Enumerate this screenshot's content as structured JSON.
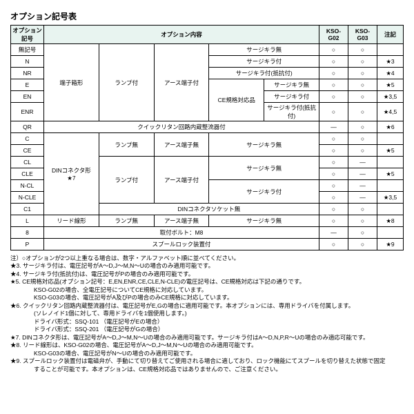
{
  "title": "オプション記号表",
  "headers": {
    "code": "オプション記号",
    "content": "オプション内容",
    "g02": "KSO-G02",
    "g03": "KSO-G03",
    "note": "注記"
  },
  "rows": [
    {
      "code": "無記号",
      "c1": "",
      "c2": "",
      "c3": "",
      "c4": "サージキラ無",
      "g02": "○",
      "g03": "○",
      "note": ""
    },
    {
      "code": "N",
      "c4": "サージキラ付",
      "g02": "○",
      "g03": "○",
      "note": "★3"
    },
    {
      "code": "NR",
      "c4": "サージキラ付(抵抗付)",
      "g02": "○",
      "g03": "○",
      "note": "★4"
    },
    {
      "code": "E",
      "c4g": "CE規格対応品",
      "c4": "サージキラ無",
      "g02": "○",
      "g03": "○",
      "note": "★5"
    },
    {
      "code": "EN",
      "c4": "サージキラ付",
      "g02": "○",
      "g03": "○",
      "note": "★3,5"
    },
    {
      "code": "ENR",
      "c4": "サージキラ付(抵抗付)",
      "g02": "○",
      "g03": "○",
      "note": "★4,5"
    },
    {
      "code": "QR",
      "qr": "クイックリタン回路内蔵整流器付",
      "g02": "―",
      "g03": "○",
      "note": "★6"
    },
    {
      "code": "C",
      "c4b": "サージキラ無",
      "g02": "○",
      "g03": "○",
      "note": ""
    },
    {
      "code": "CE",
      "c4": "CE規格対応品",
      "g02": "○",
      "g03": "○",
      "note": "★5"
    },
    {
      "code": "CL",
      "g02": "○",
      "g03": "―",
      "note": ""
    },
    {
      "code": "CLE",
      "c4": "CE規格対応品",
      "g02": "○",
      "g03": "―",
      "note": "★5"
    },
    {
      "code": "N-CL",
      "c4b": "サージキラ付",
      "g02": "○",
      "g03": "―",
      "note": ""
    },
    {
      "code": "N-CLE",
      "c4": "CE規格対応品",
      "g02": "○",
      "g03": "―",
      "note": "★3,5"
    },
    {
      "code": "C1",
      "din": "DINコネクタソケット無",
      "g02": "○",
      "g03": "○",
      "note": ""
    },
    {
      "code": "L",
      "c1": "リード線形",
      "c2": "ランプ無",
      "c3": "アース端子無",
      "c4": "サージキラ無",
      "g02": "○",
      "g03": "○",
      "note": "★8"
    },
    {
      "code": "8",
      "bolt": "取付ボルト：M8",
      "g02": "―",
      "g03": "○",
      "note": ""
    },
    {
      "code": "P",
      "spool": "スプールロック装置付",
      "g02": "○",
      "g03": "○",
      "note": "★9"
    }
  ],
  "groups": {
    "terminal": "端子箱形",
    "lamp_on": "ランプ付",
    "earth_on": "アース端子付",
    "din": "DINコネクタ形\n★7",
    "lamp_off": "ランプ無",
    "earth_off": "アース端子無"
  },
  "notes": {
    "intro": "注）○オプションが2つ以上重なる場合は、数字・アルファベット順に並べてください。",
    "n3": "★3. サージキラ付は、電圧記号がA～D,J～M,N～Uの場合のみ適用可能です。",
    "n4": "★4. サージキラ付(抵抗付)は、電圧記号がPの場合のみ適用可能です。",
    "n5": "★5. CE規格対応品(オプション記号：E,EN,ENR,CE,CLE,N-CLE)の電圧記号は、CE規格対応は下記の通りです。",
    "n5a": "KSO-G02の場合、全電圧記号についてCE規格に対応しています。",
    "n5b": "KSO-G03の場合、電圧記号がA及びPの場合のみCE規格に対応しています。",
    "n6": "★6. クイックリタン回路内蔵整流器付は、電圧記号がE,Gの場合に適用可能です。本オプションには、専用ドライバを付属します。",
    "n6a": "(ソレノイド1個に対して、専用ドライバを1個使用します。)",
    "n6b": "ドライバ形式：SSQ-101 （電圧記号がEの場合）",
    "n6c": "ドライバ形式：SSQ-201 （電圧記号がGの場合）",
    "n7": "★7. DINコネクタ形は、電圧記号がA～D,J～M,N～Uの場合のみ適用可能です。サージキラ付はA～D,N,P,R～Uの場合のみ適応可能です。",
    "n8": "★8. リード線形は、KSO-G02の場合、電圧記号がA～D,J～M,N～Uの場合のみ適用可能です。",
    "n8a": "KSO-G03の場合、電圧記号がN～Uの場合のみ適用可能です。",
    "n9": "★9. スプールロック装置付は電磁弁が、手動にて切り替えてご使用される場合に適しており、ロック機能にてスプールを切り替えた状態で固定",
    "n9a": "することが可能です。本オプションは、CE規格対応品ではありませんので、ご注意ください。"
  }
}
